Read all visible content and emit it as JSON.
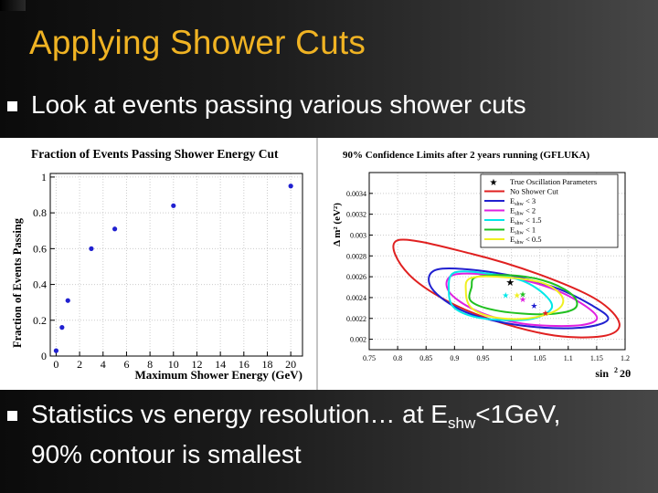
{
  "slide": {
    "title": "Applying Shower Cuts",
    "bullet1": "Look at events passing various shower cuts",
    "bullet2_pre": "Statistics vs energy resolution… at E",
    "bullet2_sub": "shw",
    "bullet2_post": "<1GeV,",
    "bullet2_line2": "90% contour is smallest",
    "colors": {
      "title": "#f0b323",
      "text": "#ffffff"
    }
  },
  "chart_data": [
    {
      "type": "scatter",
      "title": "Fraction of Events Passing Shower Energy Cut",
      "xlabel": "Maximum Shower Energy (GeV)",
      "ylabel": "Fraction of Events Passing",
      "xlim": [
        -0.5,
        21
      ],
      "ylim": [
        0,
        1.02
      ],
      "x_ticks": [
        0,
        2,
        4,
        6,
        8,
        10,
        12,
        14,
        16,
        18,
        20
      ],
      "y_ticks": [
        0,
        0.2,
        0.4,
        0.6,
        0.8,
        1
      ],
      "grid": true,
      "marker_color": "#2020d0",
      "points": [
        {
          "x": 0,
          "y": 0.03
        },
        {
          "x": 0.5,
          "y": 0.16
        },
        {
          "x": 1,
          "y": 0.31
        },
        {
          "x": 3,
          "y": 0.6
        },
        {
          "x": 5,
          "y": 0.71
        },
        {
          "x": 10,
          "y": 0.84
        },
        {
          "x": 20,
          "y": 0.95
        }
      ]
    },
    {
      "type": "contour",
      "title": "90% Confidence Limits after 2 years running (GFLUKA)",
      "xlabel": "sin²2θ",
      "ylabel": "Δ m² (eV²)",
      "xlim": [
        0.75,
        1.2
      ],
      "ylim": [
        0.0019,
        0.0036
      ],
      "x_ticks": [
        "0.75",
        "0.8",
        "0.85",
        "0.9",
        "0.95",
        "1",
        "1.05",
        "1.1",
        "1.15",
        "1.2"
      ],
      "y_ticks": [
        "0.002",
        "0.0022",
        "0.0024",
        "0.0026",
        "0.0028",
        "0.003",
        "0.0032",
        "0.0034"
      ],
      "grid": true,
      "legend_position": "top-right",
      "true_point": {
        "sin22theta": 0.998,
        "dm2": 0.00255
      },
      "series": [
        {
          "name": "No Shower Cut",
          "color": "#e02020",
          "best_fit": {
            "sin22theta": 1.06,
            "dm2": 0.00225
          },
          "contour": [
            [
              0.8,
              0.00295
            ],
            [
              0.93,
              0.00282
            ],
            [
              1.05,
              0.00262
            ],
            [
              1.15,
              0.00238
            ],
            [
              1.19,
              0.00215
            ],
            [
              1.16,
              0.00203
            ],
            [
              1.06,
              0.00205
            ],
            [
              0.92,
              0.00228
            ],
            [
              0.82,
              0.00262
            ]
          ]
        },
        {
          "name": "< 3",
          "color": "#2020d0",
          "best_fit": {
            "sin22theta": 1.04,
            "dm2": 0.00232
          },
          "contour": [
            [
              0.87,
              0.00267
            ],
            [
              0.97,
              0.00264
            ],
            [
              1.07,
              0.00251
            ],
            [
              1.14,
              0.00233
            ],
            [
              1.17,
              0.00219
            ],
            [
              1.12,
              0.00211
            ],
            [
              1.02,
              0.00213
            ],
            [
              0.92,
              0.00226
            ],
            [
              0.86,
              0.00249
            ]
          ]
        },
        {
          "name": "< 2",
          "color": "#e020e0",
          "best_fit": {
            "sin22theta": 1.02,
            "dm2": 0.00238
          },
          "contour": [
            [
              0.9,
              0.00262
            ],
            [
              0.99,
              0.0026
            ],
            [
              1.07,
              0.00249
            ],
            [
              1.13,
              0.00232
            ],
            [
              1.15,
              0.00219
            ],
            [
              1.11,
              0.00213
            ],
            [
              1.02,
              0.00215
            ],
            [
              0.94,
              0.00227
            ],
            [
              0.89,
              0.00246
            ]
          ]
        },
        {
          "name": "< 1.5",
          "color": "#00e8e8",
          "best_fit": {
            "sin22theta": 0.99,
            "dm2": 0.00242
          },
          "contour": [
            [
              0.9,
              0.00264
            ],
            [
              0.96,
              0.00263
            ],
            [
              1.02,
              0.00256
            ],
            [
              1.06,
              0.00242
            ],
            [
              1.07,
              0.00229
            ],
            [
              1.03,
              0.00219
            ],
            [
              0.95,
              0.0022
            ],
            [
              0.9,
              0.0023
            ],
            [
              0.89,
              0.00248
            ]
          ]
        },
        {
          "name": "< 1",
          "color": "#20c020",
          "best_fit": {
            "sin22theta": 1.02,
            "dm2": 0.00243
          },
          "contour": [
            [
              0.94,
              0.0026
            ],
            [
              1.01,
              0.00261
            ],
            [
              1.07,
              0.00254
            ],
            [
              1.11,
              0.00241
            ],
            [
              1.11,
              0.00229
            ],
            [
              1.06,
              0.00224
            ],
            [
              0.98,
              0.00227
            ],
            [
              0.93,
              0.00236
            ],
            [
              0.93,
              0.0025
            ]
          ]
        },
        {
          "name": "< 0.5",
          "color": "#f0f020",
          "best_fit": {
            "sin22theta": 1.01,
            "dm2": 0.00242
          },
          "contour": [
            [
              0.93,
              0.00259
            ],
            [
              1.0,
              0.00259
            ],
            [
              1.06,
              0.00253
            ],
            [
              1.09,
              0.0024
            ],
            [
              1.08,
              0.00228
            ],
            [
              1.03,
              0.0022
            ],
            [
              0.97,
              0.00221
            ],
            [
              0.93,
              0.0023
            ],
            [
              0.92,
              0.00246
            ]
          ]
        }
      ],
      "legend": [
        {
          "label": "True Oscillation Parameters"
        },
        {
          "label": "No Shower Cut"
        },
        {
          "prefix": "E",
          "sub": "shw",
          "label": "< 3"
        },
        {
          "prefix": "E",
          "sub": "shw",
          "label": "< 2"
        },
        {
          "prefix": "E",
          "sub": "shw",
          "label": "< 1.5"
        },
        {
          "prefix": "E",
          "sub": "shw",
          "label": "< 1"
        },
        {
          "prefix": "E",
          "sub": "shw",
          "label": "< 0.5"
        }
      ]
    }
  ]
}
